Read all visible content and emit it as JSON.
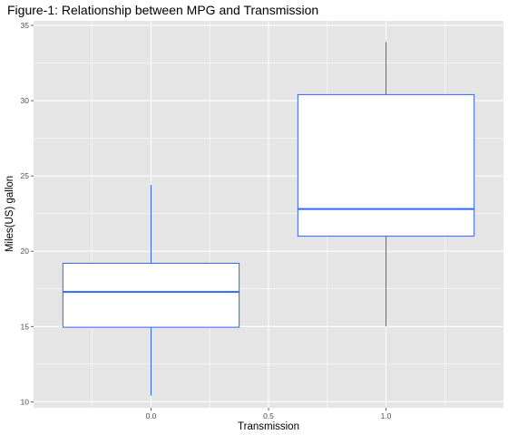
{
  "chart_data": {
    "type": "boxplot",
    "title": "Figure-1: Relationship between MPG and Transmission",
    "xlabel": "Transmission",
    "ylabel": "Miles(US) gallon",
    "x_ticks": [
      "0.0",
      "0.5",
      "1.0"
    ],
    "y_ticks": [
      "10",
      "15",
      "20",
      "25",
      "30",
      "35"
    ],
    "xlim": [
      -0.5,
      1.5
    ],
    "ylim": [
      9.6,
      35.3
    ],
    "grid": true,
    "legend": "none",
    "boxes": [
      {
        "x": 0,
        "min": 10.4,
        "q1": 14.95,
        "median": 17.3,
        "q3": 19.2,
        "max": 24.4
      },
      {
        "x": 1,
        "min": 15.0,
        "q1": 21.0,
        "median": 22.8,
        "q3": 30.4,
        "max": 33.9
      }
    ],
    "colors": {
      "panel": "#e5e5e5",
      "grid": "#ffffff",
      "box_line": "#3366ff",
      "box_fill": "#ffffff"
    }
  }
}
